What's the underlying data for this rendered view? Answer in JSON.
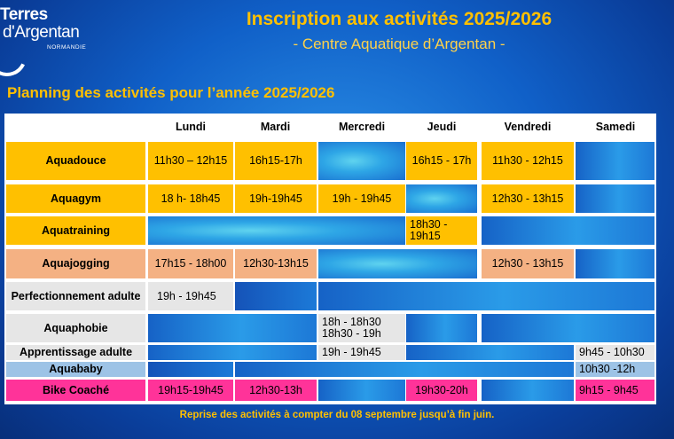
{
  "logo": {
    "line1": "Terres",
    "line2": "d'Argentan",
    "line3": "NORMANDIE"
  },
  "header": {
    "title": "Inscription aux activités 2025/2026",
    "subtitle": "- Centre Aquatique d’Argentan -"
  },
  "section_title": "Planning des activités pour l’année 2025/2026",
  "days": [
    "Lundi",
    "Mardi",
    "Mercredi",
    "Jeudi",
    "Vendredi",
    "Samedi"
  ],
  "activities": {
    "aquadouce": {
      "label": "Aquadouce",
      "lundi": "11h30 – 12h15",
      "mardi": "16h15-17h",
      "jeudi": "16h15 - 17h",
      "vendredi": "11h30 - 12h15"
    },
    "aquagym": {
      "label": "Aquagym",
      "lundi": "18 h- 18h45",
      "mardi": "19h-19h45",
      "mercredi": "19h - 19h45",
      "vendredi": "12h30 - 13h15"
    },
    "aquatraining": {
      "label": "Aquatraining",
      "jeudi": "18h30 - 19h15"
    },
    "aquajogging": {
      "label": "Aquajogging",
      "lundi": "17h15 - 18h00",
      "mardi": "12h30-13h15",
      "vendredi": "12h30 - 13h15"
    },
    "perfectionnement": {
      "label": "Perfectionnement adulte",
      "lundi": "19h - 19h45"
    },
    "aquaphobie": {
      "label": "Aquaphobie",
      "mercredi": "18h - 18h30 18h30 - 19h"
    },
    "apprentissage": {
      "label": "Apprentissage adulte",
      "mercredi": "19h - 19h45",
      "samedi": "9h45 - 10h30"
    },
    "aquababy": {
      "label": "Aquababy",
      "samedi": "10h30 -12h"
    },
    "bike": {
      "label": "Bike Coaché",
      "lundi": "19h15-19h45",
      "mardi": "12h30-13h",
      "jeudi": "19h30-20h",
      "samedi": "9h15 - 9h45"
    }
  },
  "footer": "Reprise des activités à compter du 08 septembre jusqu’à fin juin.",
  "colors": {
    "orange": "#ffc000",
    "salmon": "#f4b183",
    "grey": "#e6e6e6",
    "pink": "#ff3399",
    "light_blue": "#9dc3e6",
    "title_yellow": "#ffc000"
  }
}
